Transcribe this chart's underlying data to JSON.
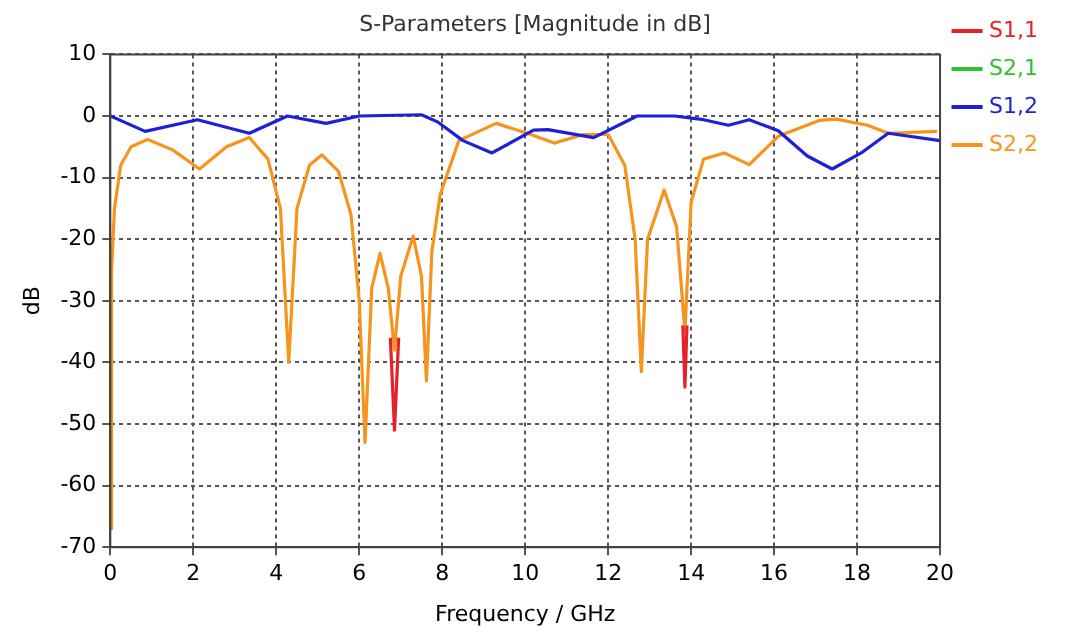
{
  "chart_data": {
    "type": "line",
    "title": "S-Parameters [Magnitude in dB]",
    "xlabel": "Frequency / GHz",
    "ylabel": "dB",
    "xlim": [
      0,
      20
    ],
    "xticks": [
      0,
      2,
      4,
      6,
      8,
      10,
      12,
      14,
      16,
      18,
      20
    ],
    "ylim": [
      -70,
      10
    ],
    "yticks": [
      -70,
      -60,
      -50,
      -40,
      -30,
      -20,
      -10,
      0,
      10
    ],
    "grid": true,
    "legend": "top right",
    "marker": "none",
    "line_style": "solid",
    "series": [
      {
        "name": "S1,1",
        "color": "#e8202a",
        "x": [
          6.75,
          6.85,
          6.95,
          10,
          13.8,
          13.85,
          13.9
        ],
        "values": [
          -36,
          -51,
          -36,
          null,
          -34,
          -44,
          -34
        ]
      },
      {
        "name": "S2,1",
        "color": "#2fbf2f"
      },
      {
        "name": "S1,2",
        "color": "#1f1fd6",
        "x": [
          0,
          0.84,
          2.1,
          3.35,
          4.27,
          5.2,
          6.0,
          7.5,
          7.9,
          8.5,
          9.2,
          10.2,
          10.55,
          11.65,
          12.7,
          13.6,
          14.3,
          14.9,
          15.4,
          16.1,
          16.8,
          17.4,
          18.1,
          18.75,
          20
        ],
        "values": [
          0,
          -2.5,
          -0.6,
          -2.8,
          0,
          -1.2,
          0,
          0.2,
          -1,
          -4,
          -6,
          -2.3,
          -2.2,
          -3.5,
          0,
          0,
          -0.6,
          -1.5,
          -0.6,
          -2.4,
          -6.5,
          -8.6,
          -6,
          -2.8,
          -4
        ]
      },
      {
        "name": "S2,2",
        "color": "#f7941d",
        "x": [
          0,
          0.03,
          0.1,
          0.25,
          0.5,
          0.9,
          1.5,
          2.15,
          2.8,
          3.35,
          3.8,
          4.1,
          4.3,
          4.5,
          4.8,
          5.1,
          5.5,
          5.8,
          6.0,
          6.14,
          6.3,
          6.5,
          6.7,
          6.85,
          7.0,
          7.3,
          7.5,
          7.62,
          7.75,
          7.95,
          8.4,
          9.3,
          10.05,
          10.7,
          11.4,
          12.0,
          12.4,
          12.65,
          12.8,
          12.95,
          13.35,
          13.65,
          13.85,
          14.0,
          14.3,
          14.8,
          15.4,
          16.1,
          17.1,
          17.5,
          18.25,
          18.75,
          19.93
        ],
        "values": [
          -67,
          -25,
          -15,
          -8,
          -5,
          -3.8,
          -5.5,
          -8.6,
          -5,
          -3.5,
          -7,
          -15,
          -40,
          -15,
          -8,
          -6.3,
          -9,
          -16,
          -30,
          -53,
          -28,
          -22.3,
          -28,
          -38,
          -26,
          -19.5,
          -26,
          -43,
          -22,
          -12.8,
          -4,
          -1.2,
          -2.8,
          -4.4,
          -3,
          -3,
          -8,
          -20,
          -41.5,
          -20,
          -12,
          -18,
          -35,
          -14,
          -7,
          -6,
          -7.9,
          -3.3,
          -0.7,
          -0.5,
          -1.5,
          -2.8,
          -2.5
        ]
      }
    ]
  }
}
